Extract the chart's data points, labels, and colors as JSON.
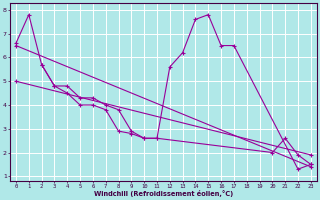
{
  "title": "",
  "xlabel": "Windchill (Refroidissement éolien,°C)",
  "line_color": "#990099",
  "bg_color": "#b0e8e8",
  "grid_color": "#ffffff",
  "xlim": [
    -0.5,
    23.5
  ],
  "ylim": [
    0.8,
    8.3
  ],
  "yticks": [
    1,
    2,
    3,
    4,
    5,
    6,
    7,
    8
  ],
  "xticks": [
    0,
    1,
    2,
    3,
    4,
    5,
    6,
    7,
    8,
    9,
    10,
    11,
    12,
    13,
    14,
    15,
    16,
    17,
    18,
    19,
    20,
    21,
    22,
    23
  ],
  "series": [
    {
      "x": [
        0,
        1,
        2,
        3,
        4,
        5,
        6,
        7,
        8,
        9,
        10,
        11,
        12,
        13,
        14,
        15,
        16,
        17,
        22,
        23
      ],
      "y": [
        6.6,
        7.8,
        5.7,
        4.8,
        4.5,
        4.0,
        4.0,
        3.8,
        2.9,
        2.8,
        2.6,
        2.6,
        5.6,
        6.2,
        7.6,
        7.8,
        6.5,
        6.5,
        1.3,
        1.5
      ]
    },
    {
      "x": [
        0,
        23
      ],
      "y": [
        6.5,
        1.4
      ]
    },
    {
      "x": [
        0,
        23
      ],
      "y": [
        5.0,
        1.9
      ]
    },
    {
      "x": [
        2,
        3,
        4,
        5,
        6,
        7,
        8,
        9,
        10,
        11,
        20,
        21,
        22,
        23
      ],
      "y": [
        5.7,
        4.8,
        4.8,
        4.3,
        4.3,
        4.0,
        3.8,
        2.9,
        2.6,
        2.6,
        2.0,
        2.6,
        1.9,
        1.5
      ]
    }
  ]
}
